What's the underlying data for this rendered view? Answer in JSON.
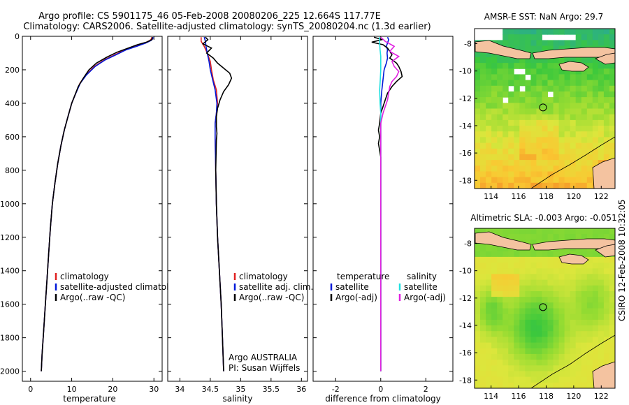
{
  "title": {
    "line1": "Argo profile: CS 5901175_46 05-Feb-2008 20080206_225 12.664S 117.77E",
    "line2": "Climatology: CARS2006. Satellite-adjusted climatology: synTS_20080204.nc (1.3d earlier)"
  },
  "side_stamp": "CSIRO 12-Feb-2008 10:32:05",
  "colors": {
    "climatology": "#e02020",
    "satellite": "#0018d8",
    "argo": "#000000",
    "satellite_diff_salinity": "#20e0e0",
    "argo_diff_salinity": "#e020e0",
    "land": "#f4c3a0",
    "coast": "#000000"
  },
  "chart_data": [
    {
      "id": "temperature",
      "type": "line",
      "xlabel": "temperature",
      "xlim": [
        -2,
        32
      ],
      "ylim": [
        0,
        2060
      ],
      "y_reversed": true,
      "xticks": [
        0,
        10,
        20,
        30
      ],
      "yticks": [
        0,
        200,
        400,
        600,
        800,
        1000,
        1200,
        1400,
        1600,
        1800,
        2000
      ],
      "legend": {
        "title_left": "",
        "title_right": "",
        "entries": [
          "climatology",
          "satellite-adjusted climatology",
          "Argo(..raw -QC)"
        ]
      },
      "series": [
        {
          "name": "climatology",
          "color_key": "climatology",
          "points": [
            [
              29.5,
              5
            ],
            [
              29.4,
              15
            ],
            [
              29.0,
              25
            ],
            [
              27.8,
              40
            ],
            [
              25.5,
              60
            ],
            [
              23.0,
              80
            ],
            [
              20.5,
              110
            ],
            [
              18.0,
              140
            ],
            [
              15.5,
              180
            ],
            [
              13.5,
              230
            ],
            [
              12.0,
              280
            ],
            [
              11.0,
              340
            ],
            [
              10.0,
              400
            ],
            [
              9.2,
              470
            ],
            [
              8.2,
              560
            ],
            [
              7.4,
              650
            ],
            [
              6.6,
              760
            ],
            [
              5.9,
              880
            ],
            [
              5.3,
              1000
            ],
            [
              4.8,
              1150
            ],
            [
              4.4,
              1300
            ],
            [
              4.0,
              1450
            ],
            [
              3.6,
              1600
            ],
            [
              3.2,
              1750
            ],
            [
              2.8,
              1900
            ],
            [
              2.6,
              2000
            ]
          ]
        },
        {
          "name": "satellite-adjusted climatology",
          "color_key": "satellite",
          "points": [
            [
              29.8,
              5
            ],
            [
              29.7,
              15
            ],
            [
              29.3,
              25
            ],
            [
              28.0,
              40
            ],
            [
              25.8,
              60
            ],
            [
              23.3,
              80
            ],
            [
              20.8,
              110
            ],
            [
              18.2,
              140
            ],
            [
              15.7,
              180
            ],
            [
              13.6,
              230
            ],
            [
              12.1,
              280
            ],
            [
              11.0,
              340
            ],
            [
              10.0,
              400
            ],
            [
              9.2,
              470
            ],
            [
              8.2,
              560
            ],
            [
              7.4,
              650
            ],
            [
              6.6,
              760
            ],
            [
              5.9,
              880
            ],
            [
              5.3,
              1000
            ],
            [
              4.8,
              1150
            ],
            [
              4.4,
              1300
            ],
            [
              4.0,
              1450
            ],
            [
              3.6,
              1600
            ],
            [
              3.2,
              1750
            ],
            [
              2.8,
              1900
            ],
            [
              2.6,
              2000
            ]
          ]
        },
        {
          "name": "Argo(..raw -QC)",
          "color_key": "argo",
          "points": [
            [
              29.6,
              5
            ],
            [
              29.5,
              20
            ],
            [
              28.2,
              35
            ],
            [
              26.0,
              50
            ],
            [
              23.8,
              70
            ],
            [
              21.0,
              95
            ],
            [
              18.5,
              125
            ],
            [
              16.0,
              160
            ],
            [
              14.2,
              200
            ],
            [
              12.8,
              250
            ],
            [
              11.6,
              300
            ],
            [
              10.8,
              350
            ],
            [
              10.0,
              400
            ],
            [
              9.2,
              470
            ],
            [
              8.2,
              560
            ],
            [
              7.4,
              650
            ],
            [
              6.6,
              760
            ],
            [
              5.9,
              880
            ],
            [
              5.3,
              1000
            ],
            [
              4.8,
              1150
            ],
            [
              4.4,
              1300
            ],
            [
              4.0,
              1450
            ],
            [
              3.6,
              1600
            ],
            [
              3.2,
              1750
            ],
            [
              2.8,
              1900
            ],
            [
              2.6,
              2000
            ]
          ]
        }
      ]
    },
    {
      "id": "salinity",
      "type": "line",
      "xlabel": "salinity",
      "xlim": [
        33.8,
        36.1
      ],
      "ylim": [
        0,
        2060
      ],
      "y_reversed": true,
      "xticks": [
        34,
        34.5,
        35,
        35.5,
        36
      ],
      "yticks": [
        0,
        200,
        400,
        600,
        800,
        1000,
        1200,
        1400,
        1600,
        1800,
        2000
      ],
      "legend": {
        "title_left": "",
        "title_right": "",
        "entries": [
          "climatology",
          "satellite adj. clim.",
          "Argo(..raw -QC)"
        ]
      },
      "annotation": [
        "Argo AUSTRALIA",
        "PI: Susan Wijffels"
      ],
      "series": [
        {
          "name": "climatology",
          "color_key": "climatology",
          "points": [
            [
              34.35,
              5
            ],
            [
              34.35,
              30
            ],
            [
              34.4,
              60
            ],
            [
              34.45,
              100
            ],
            [
              34.5,
              150
            ],
            [
              34.52,
              200
            ],
            [
              34.55,
              260
            ],
            [
              34.6,
              320
            ],
            [
              34.62,
              400
            ],
            [
              34.6,
              460
            ],
            [
              34.58,
              520
            ],
            [
              34.58,
              600
            ],
            [
              34.59,
              800
            ],
            [
              34.6,
              1000
            ],
            [
              34.62,
              1200
            ],
            [
              34.65,
              1400
            ],
            [
              34.68,
              1600
            ],
            [
              34.7,
              1800
            ],
            [
              34.72,
              2000
            ]
          ]
        },
        {
          "name": "satellite adj. clim.",
          "color_key": "satellite",
          "points": [
            [
              34.4,
              5
            ],
            [
              34.42,
              30
            ],
            [
              34.43,
              60
            ],
            [
              34.45,
              100
            ],
            [
              34.48,
              150
            ],
            [
              34.5,
              200
            ],
            [
              34.54,
              260
            ],
            [
              34.58,
              320
            ],
            [
              34.61,
              400
            ],
            [
              34.6,
              460
            ],
            [
              34.58,
              520
            ],
            [
              34.58,
              600
            ],
            [
              34.59,
              800
            ],
            [
              34.6,
              1000
            ],
            [
              34.62,
              1200
            ],
            [
              34.65,
              1400
            ],
            [
              34.68,
              1600
            ],
            [
              34.7,
              1800
            ],
            [
              34.72,
              2000
            ]
          ]
        },
        {
          "name": "Argo(..raw -QC)",
          "color_key": "argo",
          "points": [
            [
              34.42,
              5
            ],
            [
              34.46,
              20
            ],
            [
              34.38,
              45
            ],
            [
              34.52,
              70
            ],
            [
              34.44,
              100
            ],
            [
              34.55,
              130
            ],
            [
              34.62,
              160
            ],
            [
              34.72,
              190
            ],
            [
              34.82,
              220
            ],
            [
              34.85,
              250
            ],
            [
              34.8,
              290
            ],
            [
              34.72,
              330
            ],
            [
              34.66,
              380
            ],
            [
              34.62,
              430
            ],
            [
              34.6,
              480
            ],
            [
              34.6,
              540
            ],
            [
              34.61,
              580
            ],
            [
              34.6,
              620
            ],
            [
              34.59,
              800
            ],
            [
              34.6,
              1000
            ],
            [
              34.62,
              1200
            ],
            [
              34.65,
              1400
            ],
            [
              34.68,
              1600
            ],
            [
              34.7,
              1800
            ],
            [
              34.72,
              2000
            ]
          ]
        }
      ]
    },
    {
      "id": "difference",
      "type": "line",
      "xlabel": "difference from climatology",
      "xlim": [
        -3,
        3.2
      ],
      "ylim": [
        0,
        2060
      ],
      "y_reversed": true,
      "xticks": [
        -2,
        0,
        2
      ],
      "yticks": [
        0,
        200,
        400,
        600,
        800,
        1000,
        1200,
        1400,
        1600,
        1800,
        2000
      ],
      "legend": {
        "title_left": "temperature",
        "title_right": "salinity",
        "entries": [
          "satellite",
          "Argo(-adj)",
          "satellite",
          "Argo(-adj)"
        ]
      },
      "series": [
        {
          "name": "temperature satellite",
          "color_key": "satellite",
          "points": [
            [
              0.3,
              5
            ],
            [
              0.35,
              20
            ],
            [
              0.3,
              40
            ],
            [
              0.25,
              60
            ],
            [
              0.3,
              80
            ],
            [
              0.28,
              100
            ],
            [
              0.3,
              130
            ],
            [
              0.25,
              160
            ],
            [
              0.15,
              200
            ],
            [
              0.1,
              260
            ],
            [
              0.05,
              320
            ],
            [
              0.0,
              400
            ],
            [
              0.0,
              600
            ],
            [
              0.0,
              1000
            ],
            [
              0.0,
              1500
            ],
            [
              0.0,
              2000
            ]
          ]
        },
        {
          "name": "temperature Argo(-adj)",
          "color_key": "argo",
          "points": [
            [
              -0.3,
              5
            ],
            [
              0.05,
              20
            ],
            [
              -0.4,
              35
            ],
            [
              0.1,
              50
            ],
            [
              0.3,
              70
            ],
            [
              0.4,
              90
            ],
            [
              0.5,
              110
            ],
            [
              0.4,
              130
            ],
            [
              0.7,
              160
            ],
            [
              0.8,
              180
            ],
            [
              0.9,
              210
            ],
            [
              0.95,
              240
            ],
            [
              0.7,
              270
            ],
            [
              0.5,
              300
            ],
            [
              0.3,
              340
            ],
            [
              0.2,
              380
            ],
            [
              0.1,
              420
            ],
            [
              0.0,
              460
            ],
            [
              -0.05,
              520
            ],
            [
              -0.1,
              560
            ],
            [
              -0.05,
              600
            ],
            [
              -0.1,
              640
            ],
            [
              -0.05,
              680
            ],
            [
              0.0,
              720
            ],
            [
              0.0,
              1000
            ],
            [
              0.0,
              1500
            ],
            [
              0.0,
              2000
            ]
          ]
        },
        {
          "name": "salinity satellite",
          "color_key": "satellite_diff_salinity",
          "points": [
            [
              -0.05,
              5
            ],
            [
              -0.05,
              40
            ],
            [
              -0.03,
              80
            ],
            [
              0.0,
              120
            ],
            [
              0.0,
              200
            ],
            [
              -0.02,
              260
            ],
            [
              -0.05,
              320
            ],
            [
              -0.03,
              400
            ],
            [
              0.0,
              460
            ],
            [
              0.0,
              600
            ],
            [
              0.0,
              1000
            ],
            [
              0.0,
              1500
            ],
            [
              0.0,
              2000
            ]
          ]
        },
        {
          "name": "salinity Argo(-adj)",
          "color_key": "argo_diff_salinity",
          "points": [
            [
              0.0,
              5
            ],
            [
              0.2,
              30
            ],
            [
              0.6,
              60
            ],
            [
              0.4,
              90
            ],
            [
              0.8,
              120
            ],
            [
              0.5,
              150
            ],
            [
              0.6,
              180
            ],
            [
              0.8,
              210
            ],
            [
              0.7,
              240
            ],
            [
              0.5,
              270
            ],
            [
              0.4,
              300
            ],
            [
              0.35,
              340
            ],
            [
              0.3,
              380
            ],
            [
              0.2,
              420
            ],
            [
              0.1,
              460
            ],
            [
              0.0,
              520
            ],
            [
              0.0,
              600
            ],
            [
              0.0,
              1000
            ],
            [
              0.0,
              1500
            ],
            [
              0.0,
              2000
            ]
          ]
        }
      ]
    },
    {
      "id": "sst_map",
      "type": "heatmap",
      "title": "AMSR-E SST: NaN Argo: 29.7",
      "xticks": [
        114,
        116,
        118,
        120,
        122
      ],
      "yticks": [
        -8,
        -10,
        -12,
        -14,
        -16,
        -18
      ],
      "xlim": [
        112.8,
        123
      ],
      "ylim": [
        -18.6,
        -6.9
      ],
      "marker": {
        "lon": 117.77,
        "lat": -12.664
      }
    },
    {
      "id": "sla_map",
      "type": "heatmap",
      "title": "Altimetric SLA: -0.003 Argo: -0.051",
      "xticks": [
        114,
        116,
        118,
        120,
        122
      ],
      "yticks": [
        -8,
        -10,
        -12,
        -14,
        -16,
        -18
      ],
      "xlim": [
        112.8,
        123
      ],
      "ylim": [
        -18.6,
        -6.9
      ],
      "marker": {
        "lon": 117.77,
        "lat": -12.664
      }
    }
  ]
}
